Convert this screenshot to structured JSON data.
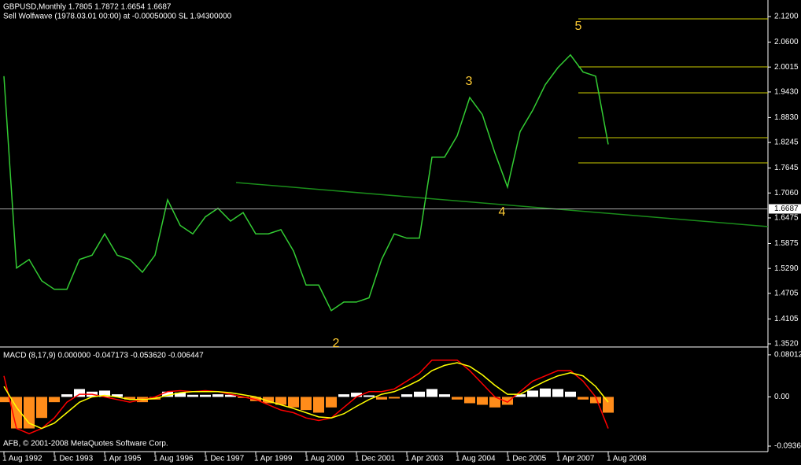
{
  "chart_data": [
    {
      "type": "line",
      "title": "GBPUSD,Monthly  1.7805 1.7872 1.6654 1.6687",
      "subtitle": "Sell Wolfwave (1978.03.01 00:00) at -0.00050000 SL 1.94300000",
      "color": "#33cc33",
      "values": [
        1.98,
        1.53,
        1.55,
        1.5,
        1.48,
        1.48,
        1.55,
        1.56,
        1.61,
        1.56,
        1.55,
        1.52,
        1.56,
        1.69,
        1.63,
        1.61,
        1.65,
        1.67,
        1.64,
        1.66,
        1.61,
        1.61,
        1.62,
        1.57,
        1.49,
        1.49,
        1.43,
        1.45,
        1.45,
        1.46,
        1.55,
        1.61,
        1.6,
        1.6,
        1.79,
        1.79,
        1.84,
        1.93,
        1.89,
        1.8,
        1.72,
        1.85,
        1.9,
        1.96,
        2.0,
        2.03,
        1.99,
        1.98,
        1.82
      ],
      "ylim": [
        1.3465,
        2.1588
      ],
      "yticks": [
        {
          "value": 1.352,
          "label": "1.3520"
        },
        1.4105,
        1.4705,
        {
          "value": 1.529,
          "label": "1.5290"
        },
        1.5875,
        {
          "value": 1.6475,
          "label": "1.6475"
        },
        {
          "value": 1.706,
          "label": "1.7060"
        },
        1.7645,
        1.8245,
        {
          "value": 1.883,
          "label": "1.8830"
        },
        {
          "value": 1.943,
          "label": "1.9430"
        },
        2.0015,
        {
          "value": 2.06,
          "label": "2.0600"
        },
        {
          "value": 2.12,
          "label": "2.1200"
        }
      ],
      "current_price": 1.6687,
      "wave_labels": [
        "2",
        "3",
        "4",
        "5"
      ]
    },
    {
      "type": "bar",
      "title": "MACD  (8,17,9) 0.000000 -0.047173 -0.053620 -0.006447",
      "categories": [
        "1 Aug 1992",
        null,
        null,
        null,
        "1 Dec 1993",
        null,
        null,
        null,
        "1 Apr 1995",
        null,
        null,
        null,
        "1 Aug 1996",
        null,
        null,
        null,
        "1 Dec 1997",
        null,
        null,
        null,
        "1 Apr 1999",
        null,
        null,
        null,
        "1 Aug 2000",
        null,
        null,
        null,
        "1 Dec 2001",
        null,
        null,
        null,
        "1 Apr 2003",
        null,
        null,
        null,
        "1 Aug 2004",
        null,
        null,
        null,
        "1 Dec 2005",
        null,
        null,
        null,
        "1 Apr 2007",
        null,
        null,
        null,
        "1 Aug 2008"
      ],
      "series": [
        {
          "type": "bar",
          "color": "#ffffff",
          "negative_color": "#ff8c1a",
          "values": [
            -0.01,
            -0.06,
            -0.06,
            -0.04,
            -0.01,
            0.005,
            0.015,
            0.01,
            0.012,
            0.005,
            -0.005,
            -0.01,
            -0.005,
            0.01,
            0.008,
            0.004,
            0.004,
            0.005,
            0.004,
            -0.002,
            -0.008,
            -0.012,
            -0.015,
            -0.02,
            -0.025,
            -0.03,
            -0.02,
            0.005,
            0.008,
            0.003,
            -0.005,
            -0.003,
            0.005,
            0.01,
            0.015,
            0.005,
            -0.005,
            -0.012,
            -0.015,
            -0.02,
            -0.015,
            0.005,
            0.012,
            0.016,
            0.015,
            0.01,
            -0.005,
            -0.012,
            -0.03
          ]
        },
        {
          "type": "line",
          "color": "#ff0000",
          "values": [
            0.04,
            -0.06,
            -0.07,
            -0.06,
            -0.04,
            -0.01,
            0.005,
            0.005,
            0.0,
            -0.005,
            -0.01,
            -0.005,
            0.0,
            0.01,
            0.012,
            0.01,
            0.012,
            0.01,
            0.005,
            0.0,
            -0.005,
            -0.015,
            -0.025,
            -0.03,
            -0.04,
            -0.045,
            -0.04,
            -0.02,
            0.0,
            0.01,
            0.01,
            0.015,
            0.03,
            0.045,
            0.07,
            0.07,
            0.07,
            0.05,
            0.025,
            0.0,
            -0.01,
            0.01,
            0.03,
            0.04,
            0.05,
            0.05,
            0.03,
            0.0,
            -0.06
          ]
        },
        {
          "type": "line",
          "color": "#ffff00",
          "values": [
            0.02,
            -0.02,
            -0.05,
            -0.06,
            -0.05,
            -0.03,
            -0.01,
            0.0,
            0.003,
            0.0,
            -0.005,
            -0.005,
            -0.003,
            0.003,
            0.008,
            0.01,
            0.01,
            0.01,
            0.008,
            0.004,
            0.0,
            -0.008,
            -0.015,
            -0.022,
            -0.03,
            -0.038,
            -0.04,
            -0.032,
            -0.018,
            -0.005,
            0.005,
            0.01,
            0.02,
            0.032,
            0.05,
            0.06,
            0.065,
            0.058,
            0.042,
            0.022,
            0.005,
            0.005,
            0.018,
            0.03,
            0.04,
            0.046,
            0.04,
            0.02,
            -0.01
          ]
        }
      ],
      "ylim": [
        -0.1026,
        0.092
      ],
      "yticks": [
        0.080121,
        {
          "value": 0,
          "label": "0.00"
        },
        -0.093637
      ],
      "annotation": "AFB, © 2001-2008 MetaQuotes Software Corp."
    }
  ]
}
